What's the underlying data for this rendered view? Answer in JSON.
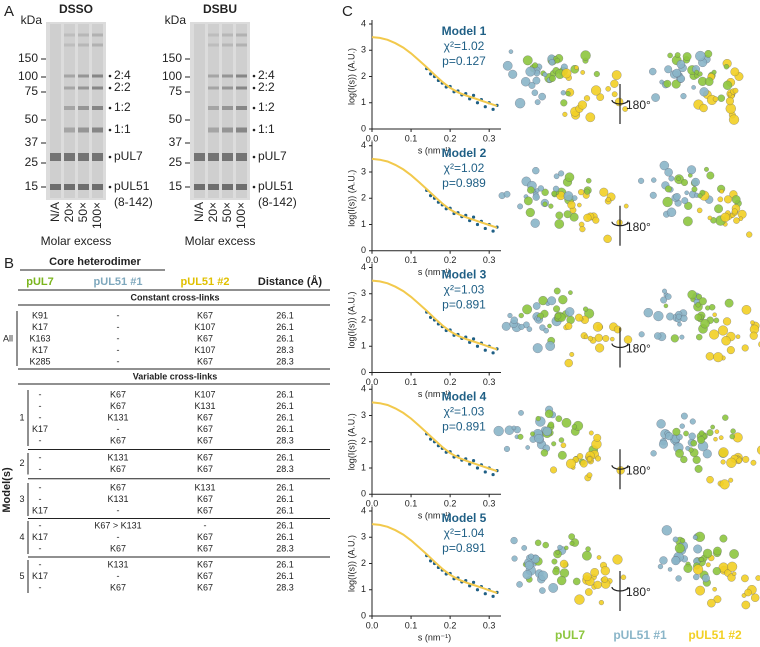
{
  "panel_a": {
    "label": "A",
    "unit": "kDa",
    "markers": [
      150,
      100,
      75,
      50,
      37,
      25,
      15
    ],
    "gels": [
      {
        "title": "DSSO"
      },
      {
        "title": "DSBU"
      }
    ],
    "lanes": [
      "N/A",
      "20×",
      "50×",
      "100×"
    ],
    "bands": [
      "2:4",
      "2:2",
      "1:2",
      "1:1",
      "pUL7",
      "pUL51"
    ],
    "band_note": "(8-142)",
    "xlabel": "Molar excess"
  },
  "panel_b": {
    "label": "B",
    "group_header": "Core heterodimer",
    "columns": [
      "pUL7",
      "pUL51 #1",
      "pUL51 #2",
      "Distance (Å)"
    ],
    "constant": {
      "title": "Constant cross-links",
      "group": "All",
      "rows": [
        [
          "K91",
          "-",
          "K67",
          26.1
        ],
        [
          "K17",
          "-",
          "K107",
          26.1
        ],
        [
          "K163",
          "-",
          "K67",
          26.1
        ],
        [
          "K17",
          "-",
          "K107",
          28.3
        ],
        [
          "K285",
          "-",
          "K67",
          28.3
        ]
      ]
    },
    "variable": {
      "title": "Variable cross-links",
      "axis_label": "Model(s)",
      "groups": [
        {
          "model": 1,
          "rows": [
            [
              "-",
              "K67",
              "K107",
              26.1
            ],
            [
              "-",
              "K67",
              "K131",
              26.1
            ],
            [
              "-",
              "K131",
              "K67",
              26.1
            ],
            [
              "K17",
              "-",
              "K67",
              26.1
            ],
            [
              "-",
              "K67",
              "K67",
              28.3
            ]
          ]
        },
        {
          "model": 2,
          "rows": [
            [
              "-",
              "K131",
              "K67",
              26.1
            ],
            [
              "-",
              "K67",
              "K67",
              28.3
            ]
          ]
        },
        {
          "model": 3,
          "rows": [
            [
              "-",
              "K67",
              "K131",
              26.1
            ],
            [
              "-",
              "K131",
              "K67",
              26.1
            ],
            [
              "K17",
              "-",
              "K67",
              26.1
            ]
          ]
        },
        {
          "model": 4,
          "rows": [
            [
              "-",
              "K67 > K131",
              "-",
              26.1
            ],
            [
              "K17",
              "-",
              "K67",
              26.1
            ],
            [
              "-",
              "K67",
              "K67",
              28.3
            ]
          ]
        },
        {
          "model": 5,
          "rows": [
            [
              "-",
              "K131",
              "K67",
              26.1
            ],
            [
              "K17",
              "-",
              "K67",
              26.1
            ],
            [
              "-",
              "K67",
              "K67",
              28.3
            ]
          ]
        }
      ]
    }
  },
  "panel_c": {
    "label": "C",
    "ylabel": "log(I(s)) (A.U.)",
    "xlabel": "s (nm⁻¹)",
    "xlim": [
      0,
      0.32
    ],
    "xticks": [
      {
        "value": 0,
        "label": "0.0"
      },
      {
        "value": 0.1,
        "label": "0.1"
      },
      {
        "value": 0.2,
        "label": "0.2"
      },
      {
        "value": 0.3,
        "label": "0.3"
      }
    ],
    "ylim": [
      0,
      4
    ],
    "yticks": [
      0,
      1,
      2,
      3,
      4
    ],
    "s": [
      0,
      0.02,
      0.04,
      0.06,
      0.08,
      0.1,
      0.12,
      0.14,
      0.16,
      0.18,
      0.2,
      0.22,
      0.24,
      0.26,
      0.28,
      0.3,
      0.32
    ],
    "fit": [
      3.5,
      3.47,
      3.4,
      3.27,
      3.1,
      2.88,
      2.62,
      2.35,
      2.07,
      1.8,
      1.57,
      1.4,
      1.28,
      1.18,
      1.08,
      0.98,
      0.88
    ],
    "data_s": [
      0.14,
      0.15,
      0.16,
      0.17,
      0.18,
      0.19,
      0.2,
      0.21,
      0.22,
      0.23,
      0.24,
      0.25,
      0.26,
      0.27,
      0.28,
      0.29,
      0.3,
      0.31,
      0.32
    ],
    "data": [
      2.3,
      2.1,
      2.0,
      1.85,
      1.75,
      1.6,
      1.62,
      1.42,
      1.45,
      1.3,
      1.35,
      1.15,
      1.28,
      1.0,
      1.12,
      0.85,
      1.0,
      0.75,
      0.9
    ],
    "rotation": "180°",
    "models": [
      {
        "name": "Model 1",
        "chi2": "χ²=1.02",
        "p": "p=0.127"
      },
      {
        "name": "Model 2",
        "chi2": "χ²=1.02",
        "p": "p=0.989"
      },
      {
        "name": "Model 3",
        "chi2": "χ²=1.03",
        "p": "p=0.891"
      },
      {
        "name": "Model 4",
        "chi2": "χ²=1.03",
        "p": "p=0.891"
      },
      {
        "name": "Model 5",
        "chi2": "χ²=1.04",
        "p": "p=0.891"
      }
    ],
    "legend": [
      {
        "name": "pUL7",
        "color": "#8dc63f"
      },
      {
        "name": "pUL51 #1",
        "color": "#8ab5c8"
      },
      {
        "name": "pUL51 #2",
        "color": "#f2d024"
      }
    ],
    "fit_color": "#f2c94c",
    "data_color": "#1f5f85"
  }
}
